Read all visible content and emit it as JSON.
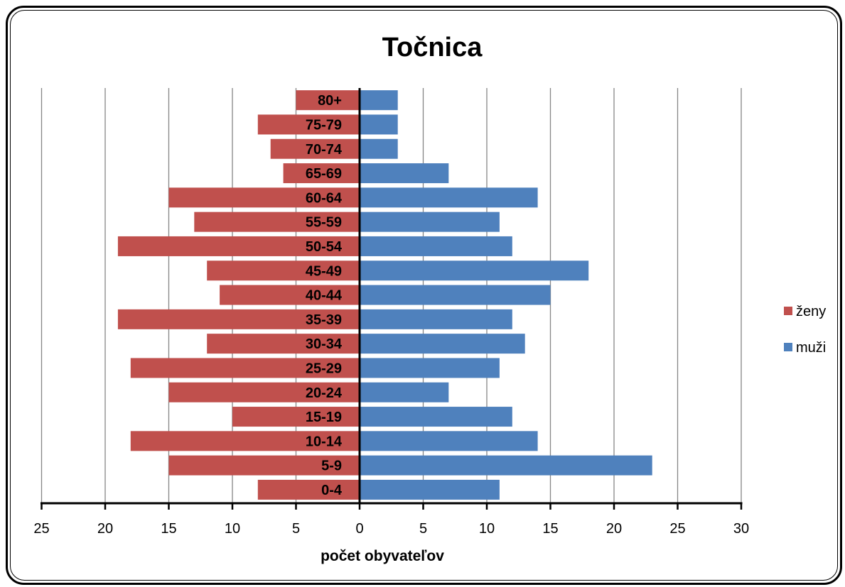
{
  "chart_data": {
    "type": "bar",
    "orientation": "horizontal",
    "title": "Točnica",
    "xlabel": "počet obyvateľov",
    "ylabel": "",
    "categories": [
      "0-4",
      "5-9",
      "10-14",
      "15-19",
      "20-24",
      "25-29",
      "30-34",
      "35-39",
      "40-44",
      "45-49",
      "50-54",
      "55-59",
      "60-64",
      "65-69",
      "70-74",
      "75-79",
      "80+"
    ],
    "series": [
      {
        "name": "ženy",
        "side": "left",
        "color": "#C0504D",
        "values": [
          8,
          15,
          18,
          10,
          15,
          18,
          12,
          19,
          11,
          12,
          19,
          13,
          15,
          6,
          7,
          8,
          5
        ]
      },
      {
        "name": "muži",
        "side": "right",
        "color": "#4F81BD",
        "values": [
          11,
          23,
          14,
          12,
          7,
          11,
          13,
          12,
          15,
          18,
          12,
          11,
          14,
          7,
          3,
          3,
          3
        ]
      }
    ],
    "xlim": [
      -25,
      30
    ],
    "x_ticks": [
      -25,
      -20,
      -15,
      -10,
      -5,
      0,
      5,
      10,
      15,
      20,
      25,
      30
    ],
    "x_tick_labels": [
      "25",
      "20",
      "15",
      "10",
      "5",
      "0",
      "5",
      "10",
      "15",
      "20",
      "25",
      "30"
    ],
    "grid": true,
    "gridline_color": "#868686",
    "legend": "right"
  }
}
